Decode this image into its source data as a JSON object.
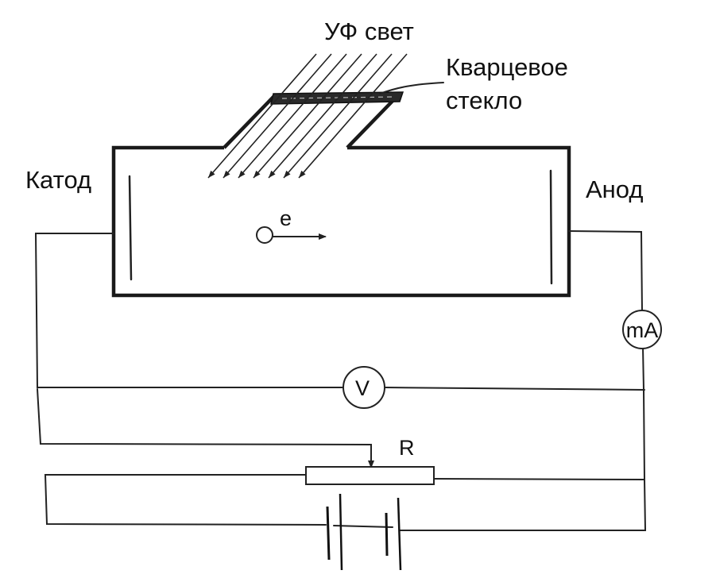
{
  "labels": {
    "uv_light": "УФ свет",
    "quartz_line1": "Кварцевое",
    "quartz_line2": "стекло",
    "cathode": "Катод",
    "anode": "Анод",
    "electron": "e",
    "milliammeter": "mA",
    "voltmeter": "V",
    "resistor": "R"
  },
  "colors": {
    "ink": "#1a1a1a",
    "background": "#ffffff"
  }
}
